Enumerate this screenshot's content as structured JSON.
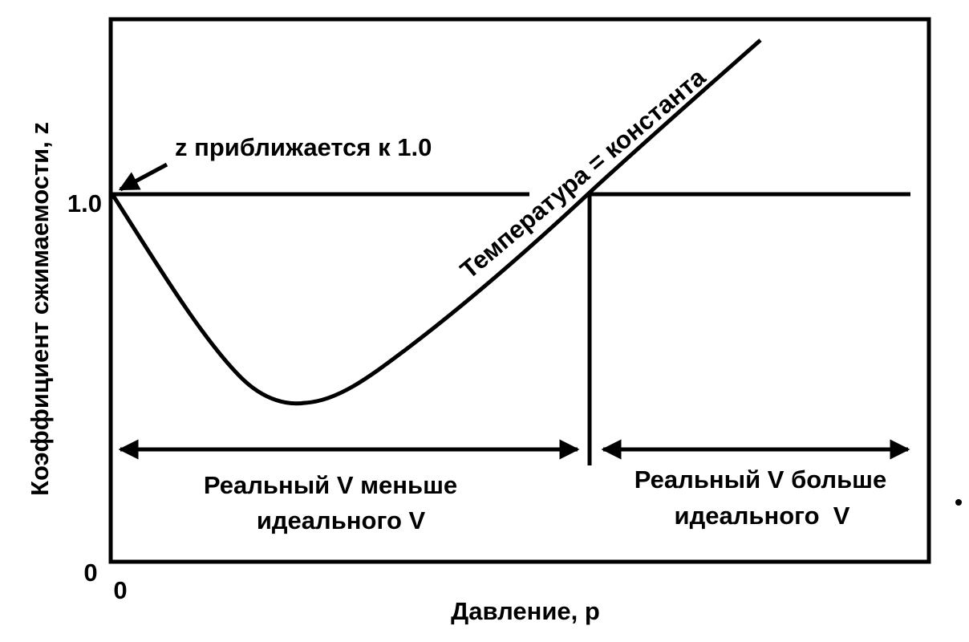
{
  "axes": {
    "y_label": "Коэффициент сжимаемости, z",
    "x_label": "Давление, р",
    "y_tick_top": "1.0",
    "y_tick_origin": "0",
    "x_tick_origin": "0"
  },
  "annotations": {
    "approach": "z приближается к 1.0",
    "curve": "Температура = константа",
    "left_region": [
      "Реальный V меньше",
      "идеального V"
    ],
    "right_region": [
      "Реальный V больше",
      "идеального  V"
    ]
  }
}
